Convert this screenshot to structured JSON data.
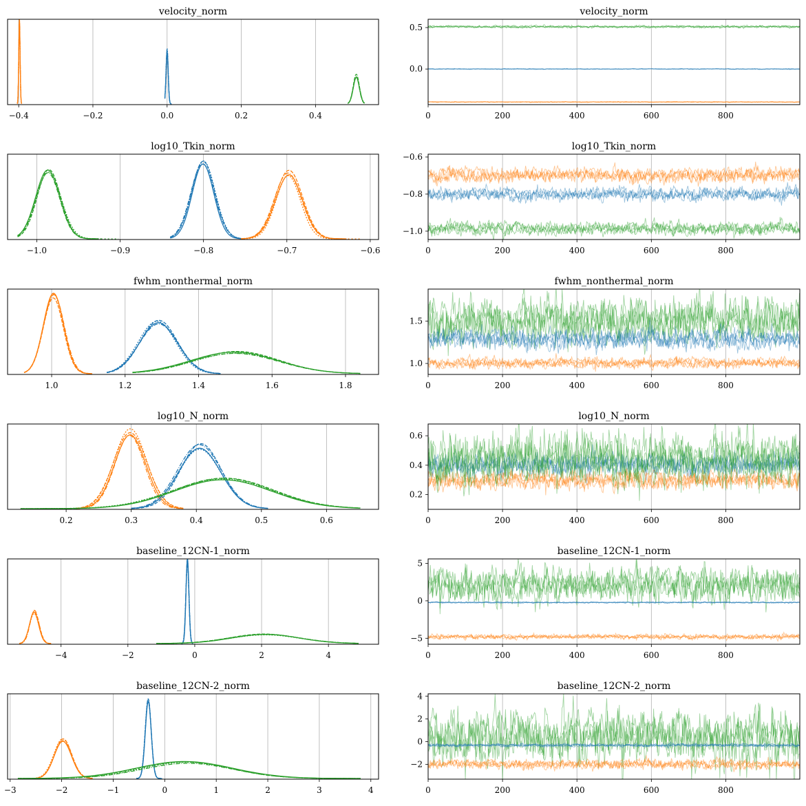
{
  "figure": {
    "type": "arviz-trace-plot",
    "colors": {
      "c0": "#1f77b4",
      "c1": "#ff7f0e",
      "c2": "#2ca02c",
      "grid": "#b0b0b0",
      "axis": "#000000"
    }
  },
  "chart_data": [
    {
      "type": "line",
      "kind": "density",
      "title": "velocity_norm",
      "xlim": [
        -0.43,
        0.57
      ],
      "ylim": [
        0,
        1
      ],
      "grid": "x",
      "xticks": [
        -0.4,
        -0.2,
        0.0,
        0.2,
        0.4
      ],
      "xtick_labels": [
        "−0.4",
        "−0.2",
        "0.0",
        "0.2",
        "0.4"
      ],
      "series": [
        {
          "color": "#1f77b4",
          "mu": 0.0,
          "sigma": 0.003,
          "peak": 0.63,
          "range": [
            -0.006,
            0.012
          ]
        },
        {
          "color": "#ff7f0e",
          "mu": -0.398,
          "sigma": 0.0018,
          "peak": 0.96,
          "range": [
            -0.404,
            -0.392
          ]
        },
        {
          "color": "#2ca02c",
          "mu": 0.51,
          "sigma": 0.008,
          "peak": 0.31,
          "range": [
            0.487,
            0.532
          ]
        }
      ]
    },
    {
      "type": "line",
      "kind": "trace",
      "title": "velocity_norm",
      "xlim": [
        0,
        999
      ],
      "ylim": [
        -0.43,
        0.6
      ],
      "grid": "x",
      "xticks": [
        0,
        200,
        400,
        600,
        800
      ],
      "xtick_labels": [
        "0",
        "200",
        "400",
        "600",
        "800"
      ],
      "yticks": [
        0.5,
        0.0
      ],
      "ytick_labels": [
        "0.5",
        "0.0"
      ],
      "series": [
        {
          "color": "#1f77b4",
          "mean": 0.0,
          "sd": 0.002,
          "spike_p": 0.0,
          "spike_sd": 0
        },
        {
          "color": "#ff7f0e",
          "mean": -0.398,
          "sd": 0.002,
          "spike_p": 0.0,
          "spike_sd": 0
        },
        {
          "color": "#2ca02c",
          "mean": 0.51,
          "sd": 0.006,
          "spike_p": 0.0,
          "spike_sd": 0
        }
      ]
    },
    {
      "type": "line",
      "kind": "density",
      "title": "log10_Tkin_norm",
      "xlim": [
        -1.035,
        -0.59
      ],
      "ylim": [
        0,
        1
      ],
      "grid": "x",
      "xticks": [
        -1.0,
        -0.9,
        -0.8,
        -0.7,
        -0.6
      ],
      "xtick_labels": [
        "−1.0",
        "−0.9",
        "−0.8",
        "−0.7",
        "−0.6"
      ],
      "series": [
        {
          "color": "#1f77b4",
          "mu": -0.8,
          "sigma": 0.014,
          "peak": 0.9,
          "range": [
            -0.84,
            -0.755
          ]
        },
        {
          "color": "#ff7f0e",
          "mu": -0.698,
          "sigma": 0.016,
          "peak": 0.78,
          "range": [
            -0.755,
            -0.612
          ]
        },
        {
          "color": "#2ca02c",
          "mu": -0.986,
          "sigma": 0.015,
          "peak": 0.82,
          "range": [
            -1.023,
            -0.902
          ]
        }
      ]
    },
    {
      "type": "line",
      "kind": "trace",
      "title": "log10_Tkin_norm",
      "xlim": [
        0,
        999
      ],
      "ylim": [
        -1.045,
        -0.585
      ],
      "grid": "x",
      "xticks": [
        0,
        200,
        400,
        600,
        800
      ],
      "xtick_labels": [
        "0",
        "200",
        "400",
        "600",
        "800"
      ],
      "yticks": [
        -0.6,
        -0.8,
        -1.0
      ],
      "ytick_labels": [
        "−0.6",
        "−0.8",
        "−1.0"
      ],
      "series": [
        {
          "color": "#2ca02c",
          "mean": -0.986,
          "sd": 0.014,
          "spike_p": 0.01,
          "spike_sd": 0.03
        },
        {
          "color": "#1f77b4",
          "mean": -0.8,
          "sd": 0.014,
          "spike_p": 0.005,
          "spike_sd": 0.025
        },
        {
          "color": "#ff7f0e",
          "mean": -0.698,
          "sd": 0.016,
          "spike_p": 0.008,
          "spike_sd": 0.03
        }
      ]
    },
    {
      "type": "line",
      "kind": "density",
      "title": "fwhm_nonthermal_norm",
      "xlim": [
        0.88,
        1.89
      ],
      "ylim": [
        0,
        1
      ],
      "grid": "x",
      "xticks": [
        1.0,
        1.2,
        1.4,
        1.6,
        1.8
      ],
      "xtick_labels": [
        "1.0",
        "1.2",
        "1.4",
        "1.6",
        "1.8"
      ],
      "series": [
        {
          "color": "#ff7f0e",
          "mu": 1.005,
          "sigma": 0.028,
          "peak": 0.9,
          "range": [
            0.925,
            1.11
          ]
        },
        {
          "color": "#1f77b4",
          "mu": 1.29,
          "sigma": 0.05,
          "peak": 0.6,
          "range": [
            1.15,
            1.46
          ]
        },
        {
          "color": "#2ca02c",
          "mu": 1.5,
          "sigma": 0.12,
          "peak": 0.25,
          "range": [
            1.22,
            1.84
          ]
        }
      ]
    },
    {
      "type": "line",
      "kind": "trace",
      "title": "fwhm_nonthermal_norm",
      "xlim": [
        0,
        999
      ],
      "ylim": [
        0.87,
        1.88
      ],
      "grid": "x",
      "xticks": [
        0,
        200,
        400,
        600,
        800
      ],
      "xtick_labels": [
        "0",
        "200",
        "400",
        "600",
        "800"
      ],
      "yticks": [
        1.5,
        1.0
      ],
      "ytick_labels": [
        "1.5",
        "1.0"
      ],
      "series": [
        {
          "color": "#2ca02c",
          "mean": 1.5,
          "sd": 0.11,
          "spike_p": 0.02,
          "spike_sd": 0.12
        },
        {
          "color": "#1f77b4",
          "mean": 1.29,
          "sd": 0.05,
          "spike_p": 0.01,
          "spike_sd": 0.05
        },
        {
          "color": "#ff7f0e",
          "mean": 1.005,
          "sd": 0.025,
          "spike_p": 0.005,
          "spike_sd": 0.03
        }
      ]
    },
    {
      "type": "line",
      "kind": "density",
      "title": "log10_N_norm",
      "xlim": [
        0.11,
        0.68
      ],
      "ylim": [
        0,
        1
      ],
      "grid": "x",
      "xticks": [
        0.2,
        0.3,
        0.4,
        0.5,
        0.6
      ],
      "xtick_labels": [
        "0.2",
        "0.3",
        "0.4",
        "0.5",
        "0.6"
      ],
      "series": [
        {
          "color": "#ff7f0e",
          "mu": 0.298,
          "sigma": 0.025,
          "peak": 0.9,
          "range": [
            0.215,
            0.38
          ]
        },
        {
          "color": "#1f77b4",
          "mu": 0.405,
          "sigma": 0.032,
          "peak": 0.75,
          "range": [
            0.3,
            0.51
          ]
        },
        {
          "color": "#2ca02c",
          "mu": 0.44,
          "sigma": 0.075,
          "peak": 0.35,
          "range": [
            0.13,
            0.652
          ]
        }
      ]
    },
    {
      "type": "line",
      "kind": "trace",
      "title": "log10_N_norm",
      "xlim": [
        0,
        999
      ],
      "ylim": [
        0.1,
        0.68
      ],
      "grid": "x",
      "xticks": [
        0,
        200,
        400,
        600,
        800
      ],
      "xtick_labels": [
        "0",
        "200",
        "400",
        "600",
        "800"
      ],
      "yticks": [
        0.6,
        0.4,
        0.2
      ],
      "ytick_labels": [
        "0.6",
        "0.4",
        "0.2"
      ],
      "series": [
        {
          "color": "#1f77b4",
          "mean": 0.405,
          "sd": 0.03,
          "spike_p": 0.005,
          "spike_sd": 0.03
        },
        {
          "color": "#ff7f0e",
          "mean": 0.298,
          "sd": 0.025,
          "spike_p": 0.005,
          "spike_sd": 0.03
        },
        {
          "color": "#2ca02c",
          "mean": 0.44,
          "sd": 0.07,
          "spike_p": 0.02,
          "spike_sd": 0.09
        }
      ]
    },
    {
      "type": "line",
      "kind": "density",
      "title": "baseline_12CN-1_norm",
      "xlim": [
        -5.6,
        5.5
      ],
      "ylim": [
        0,
        1
      ],
      "grid": "x",
      "xticks": [
        -4,
        -2,
        0,
        2,
        4
      ],
      "xtick_labels": [
        "−4",
        "−2",
        "0",
        "2",
        "4"
      ],
      "series": [
        {
          "color": "#ff7f0e",
          "mu": -4.8,
          "sigma": 0.14,
          "peak": 0.38,
          "range": [
            -5.25,
            -4.3
          ]
        },
        {
          "color": "#1f77b4",
          "mu": -0.22,
          "sigma": 0.045,
          "peak": 0.94,
          "range": [
            -0.4,
            -0.05
          ]
        },
        {
          "color": "#2ca02c",
          "mu": 2.1,
          "sigma": 1.05,
          "peak": 0.11,
          "range": [
            -1.15,
            4.9
          ]
        }
      ]
    },
    {
      "type": "line",
      "kind": "trace",
      "title": "baseline_12CN-1_norm",
      "xlim": [
        0,
        999
      ],
      "ylim": [
        -5.8,
        5.6
      ],
      "grid": "x",
      "xticks": [
        0,
        200,
        400,
        600,
        800
      ],
      "xtick_labels": [
        "0",
        "200",
        "400",
        "600",
        "800"
      ],
      "yticks": [
        5,
        0,
        -5
      ],
      "ytick_labels": [
        "5",
        "0",
        "−5"
      ],
      "series": [
        {
          "color": "#2ca02c",
          "mean": 2.1,
          "sd": 0.95,
          "spike_p": 0.02,
          "spike_sd": 1.2
        },
        {
          "color": "#1f77b4",
          "mean": -0.22,
          "sd": 0.04,
          "spike_p": 0.0,
          "spike_sd": 0
        },
        {
          "color": "#ff7f0e",
          "mean": -4.8,
          "sd": 0.13,
          "spike_p": 0.005,
          "spike_sd": 0.15
        }
      ]
    },
    {
      "type": "line",
      "kind": "density",
      "title": "baseline_12CN-2_norm",
      "xlim": [
        -3.05,
        4.15
      ],
      "ylim": [
        0,
        1
      ],
      "grid": "x",
      "xticks": [
        -3,
        -2,
        -1,
        0,
        1,
        2,
        3,
        4
      ],
      "xtick_labels": [
        "−3",
        "−2",
        "−1",
        "0",
        "1",
        "2",
        "3",
        "4"
      ],
      "series": [
        {
          "color": "#ff7f0e",
          "mu": -1.98,
          "sigma": 0.17,
          "peak": 0.45,
          "range": [
            -2.5,
            -1.4
          ]
        },
        {
          "color": "#1f77b4",
          "mu": -0.32,
          "sigma": 0.058,
          "peak": 0.92,
          "range": [
            -0.55,
            -0.05
          ]
        },
        {
          "color": "#2ca02c",
          "mu": 0.4,
          "sigma": 0.95,
          "peak": 0.2,
          "range": [
            -2.85,
            3.8
          ]
        }
      ]
    },
    {
      "type": "line",
      "kind": "trace",
      "title": "baseline_12CN-2_norm",
      "xlim": [
        0,
        999
      ],
      "ylim": [
        -3.3,
        4.2
      ],
      "grid": "x",
      "xticks": [
        0,
        200,
        400,
        600,
        800
      ],
      "xtick_labels": [
        "0",
        "200",
        "400",
        "600",
        "800"
      ],
      "yticks": [
        4,
        2,
        0,
        -2
      ],
      "ytick_labels": [
        "4",
        "2",
        "0",
        "−2"
      ],
      "series": [
        {
          "color": "#2ca02c",
          "mean": 0.4,
          "sd": 0.9,
          "spike_p": 0.03,
          "spike_sd": 1.3
        },
        {
          "color": "#1f77b4",
          "mean": -0.32,
          "sd": 0.06,
          "spike_p": 0.0,
          "spike_sd": 0
        },
        {
          "color": "#ff7f0e",
          "mean": -1.98,
          "sd": 0.17,
          "spike_p": 0.01,
          "spike_sd": 0.25
        }
      ]
    }
  ]
}
